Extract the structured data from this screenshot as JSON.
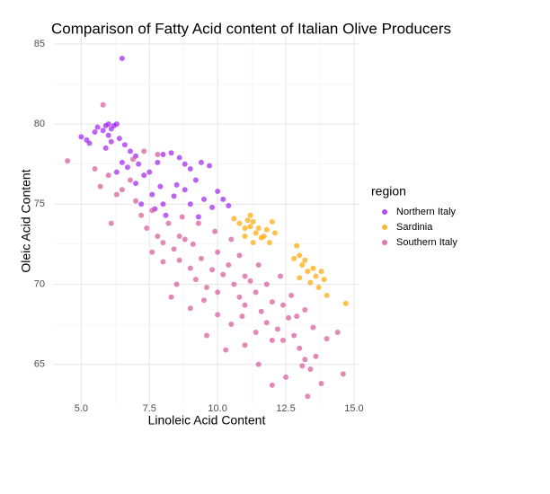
{
  "chart_data": {
    "type": "scatter",
    "title": "Comparison of Fatty Acid content of Italian Olive Producers",
    "x_label": "Linoleic Acid Content",
    "y_label": "Oleic Acid Content",
    "legend_title": "region",
    "legend_position": "right",
    "grid": true,
    "xlim": [
      4.0,
      15.2
    ],
    "ylim": [
      62.4,
      85.5
    ],
    "xticks": [
      {
        "value": 5,
        "label": "5.0"
      },
      7.5,
      {
        "value": 10,
        "label": "10.0"
      },
      12.5,
      {
        "value": 15,
        "label": "15.0"
      }
    ],
    "yticks": [
      65,
      70,
      75,
      80,
      85
    ],
    "series": [
      {
        "name": "Northern Italy",
        "color": "#a020f0",
        "x": [
          5.0,
          5.2,
          5.3,
          5.5,
          5.6,
          5.8,
          5.9,
          6.0,
          6.1,
          6.2,
          6.3,
          6.0,
          5.9,
          6.1,
          6.4,
          6.6,
          6.8,
          7.0,
          6.5,
          6.3,
          6.7,
          7.1,
          7.3,
          7.5,
          7.8,
          8.0,
          8.3,
          8.6,
          8.8,
          9.0,
          9.4,
          9.7,
          9.2,
          8.8,
          8.5,
          7.9,
          7.6,
          7.2,
          7.7,
          8.1,
          8.4,
          9.0,
          9.5,
          10.0,
          10.2,
          9.8,
          9.3,
          10.4,
          8.0,
          7.0,
          6.5
        ],
        "values": [
          79.2,
          79.0,
          78.8,
          79.5,
          79.8,
          79.6,
          79.9,
          80.0,
          79.7,
          79.9,
          80.0,
          79.3,
          78.5,
          78.9,
          79.1,
          78.7,
          78.3,
          78.0,
          77.6,
          77.0,
          77.3,
          77.5,
          76.8,
          77.0,
          77.6,
          78.1,
          78.2,
          77.9,
          77.5,
          77.2,
          77.6,
          77.4,
          76.5,
          75.9,
          76.2,
          76.1,
          75.6,
          75.0,
          74.7,
          74.3,
          75.5,
          75.0,
          75.3,
          75.8,
          75.3,
          74.8,
          74.2,
          74.9,
          75.0,
          76.3,
          84.1
        ]
      },
      {
        "name": "Sardinia",
        "color": "#ffa500",
        "x": [
          10.6,
          10.8,
          11.0,
          11.1,
          11.2,
          11.3,
          11.4,
          11.5,
          11.2,
          11.0,
          11.6,
          11.8,
          11.3,
          12.0,
          11.7,
          11.9,
          12.9,
          13.0,
          13.1,
          13.2,
          13.3,
          13.0,
          13.5,
          13.6,
          13.8,
          13.9,
          13.7,
          14.0,
          13.4,
          12.8,
          14.7,
          12.1
        ],
        "values": [
          74.1,
          73.8,
          73.5,
          74.0,
          73.6,
          73.9,
          73.2,
          73.5,
          74.3,
          73.0,
          72.9,
          73.4,
          72.6,
          73.9,
          73.0,
          72.6,
          72.4,
          71.8,
          71.2,
          71.5,
          70.8,
          70.4,
          71.0,
          70.5,
          70.8,
          70.3,
          69.8,
          69.3,
          70.1,
          71.6,
          68.8,
          73.2
        ]
      },
      {
        "name": "Southern Italy",
        "color": "#d6579a",
        "x": [
          4.5,
          5.5,
          5.7,
          5.8,
          6.1,
          6.0,
          6.3,
          6.5,
          6.8,
          7.0,
          7.2,
          7.4,
          7.6,
          7.8,
          8.0,
          8.2,
          8.4,
          8.6,
          8.8,
          9.0,
          9.2,
          9.4,
          9.6,
          9.8,
          10.0,
          10.2,
          10.4,
          10.6,
          10.8,
          11.0,
          11.2,
          11.4,
          11.6,
          11.8,
          12.0,
          12.2,
          12.4,
          12.6,
          12.8,
          13.0,
          13.2,
          13.4,
          13.6,
          13.8,
          14.0,
          14.6,
          12.0,
          11.5,
          11.0,
          10.5,
          10.0,
          9.5,
          9.0,
          8.5,
          8.0,
          7.6,
          10.5,
          9.9,
          9.3,
          8.7,
          10.8,
          11.5,
          12.3,
          12.7,
          13.2,
          12.0,
          11.4,
          10.9,
          12.5,
          13.1,
          10.0,
          7.3,
          7.8,
          6.9,
          8.3,
          9.6,
          10.3,
          11.8,
          12.9,
          13.5,
          14.4,
          13.3,
          8.6,
          9.1,
          11.0,
          12.4
        ],
        "values": [
          77.7,
          77.2,
          76.1,
          81.2,
          73.8,
          76.8,
          75.6,
          75.9,
          76.5,
          75.2,
          74.3,
          73.5,
          74.6,
          73.0,
          72.6,
          73.8,
          72.2,
          71.5,
          72.8,
          71.0,
          70.3,
          71.6,
          69.8,
          70.9,
          69.5,
          70.6,
          71.2,
          70.0,
          69.2,
          68.7,
          70.2,
          69.5,
          68.3,
          67.6,
          68.9,
          67.2,
          66.5,
          67.9,
          66.8,
          66.0,
          65.3,
          64.7,
          65.5,
          63.8,
          66.6,
          64.4,
          63.7,
          65.0,
          66.2,
          67.5,
          68.1,
          69.0,
          68.5,
          70.0,
          71.4,
          72.0,
          72.8,
          73.3,
          73.8,
          74.2,
          71.8,
          71.2,
          70.5,
          69.3,
          68.4,
          66.5,
          67.0,
          68.0,
          64.2,
          64.9,
          72.0,
          78.3,
          78.1,
          77.8,
          69.2,
          66.8,
          65.9,
          70.0,
          68.0,
          67.3,
          67.0,
          63.0,
          73.0,
          72.5,
          70.5,
          68.7
        ]
      }
    ]
  }
}
